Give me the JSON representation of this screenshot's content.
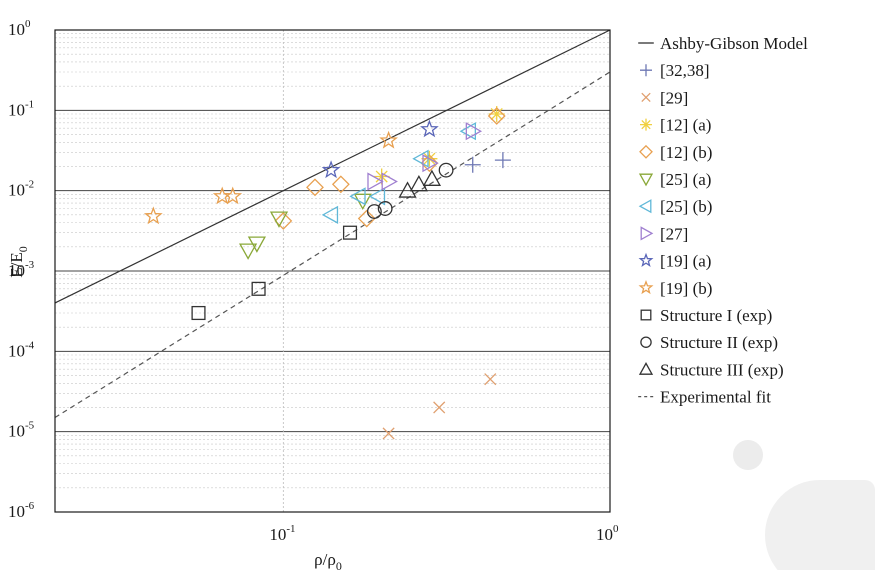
{
  "chart_data": {
    "type": "scatter",
    "xscale": "log",
    "yscale": "log",
    "xlim": [
      0.02,
      1
    ],
    "ylim": [
      1e-06,
      1
    ],
    "xlabel": "ρ/ρ0",
    "ylabel": "E/E0",
    "xticks": [
      {
        "value": 0.1,
        "base": "10",
        "exp": "-1"
      },
      {
        "value": 1,
        "base": "10",
        "exp": "0"
      }
    ],
    "yticks": [
      {
        "value": 1,
        "base": "10",
        "exp": "0"
      },
      {
        "value": 0.1,
        "base": "10",
        "exp": "-1"
      },
      {
        "value": 0.01,
        "base": "10",
        "exp": "-2"
      },
      {
        "value": 0.001,
        "base": "10",
        "exp": "-3"
      },
      {
        "value": 0.0001,
        "base": "10",
        "exp": "-4"
      },
      {
        "value": 1e-05,
        "base": "10",
        "exp": "-5"
      },
      {
        "value": 1e-06,
        "base": "10",
        "exp": "-6"
      }
    ],
    "grid": true,
    "legend_position": "right",
    "lines": [
      {
        "name": "Ashby-Gibson Model",
        "style": "solid",
        "color": "#333333",
        "points": [
          [
            0.02,
            0.0004
          ],
          [
            1,
            1
          ]
        ]
      },
      {
        "name": "Experimental fit",
        "style": "dashed",
        "color": "#555555",
        "points": [
          [
            0.02,
            1.5e-05
          ],
          [
            1,
            0.3
          ]
        ]
      }
    ],
    "series": [
      {
        "name": "[32,38]",
        "marker": "plus",
        "color": "#6e78b4",
        "points": [
          [
            0.38,
            0.021
          ],
          [
            0.47,
            0.024
          ]
        ]
      },
      {
        "name": "[29]",
        "marker": "x",
        "color": "#e0a070",
        "points": [
          [
            0.21,
            9.5e-06
          ],
          [
            0.3,
            2e-05
          ],
          [
            0.43,
            4.5e-05
          ]
        ]
      },
      {
        "name": "[12] (a)",
        "marker": "asterisk",
        "color": "#f0d040",
        "points": [
          [
            0.2,
            0.015
          ],
          [
            0.28,
            0.025
          ],
          [
            0.45,
            0.09
          ]
        ]
      },
      {
        "name": "[12] (b)",
        "marker": "diamond",
        "color": "#e8a050",
        "points": [
          [
            0.1,
            0.0042
          ],
          [
            0.125,
            0.011
          ],
          [
            0.15,
            0.012
          ],
          [
            0.18,
            0.0045
          ],
          [
            0.28,
            0.022
          ],
          [
            0.45,
            0.085
          ]
        ]
      },
      {
        "name": "[25] (a)",
        "marker": "triangle-down",
        "color": "#8aa838",
        "points": [
          [
            0.078,
            0.0018
          ],
          [
            0.083,
            0.0022
          ],
          [
            0.097,
            0.0045
          ],
          [
            0.175,
            0.0075
          ]
        ]
      },
      {
        "name": "[25] (b)",
        "marker": "triangle-left",
        "color": "#60b8d8",
        "points": [
          [
            0.14,
            0.005
          ],
          [
            0.17,
            0.0085
          ],
          [
            0.195,
            0.0085
          ],
          [
            0.265,
            0.025
          ],
          [
            0.37,
            0.055
          ]
        ]
      },
      {
        "name": "[27]",
        "marker": "triangle-right",
        "color": "#a080d0",
        "points": [
          [
            0.19,
            0.013
          ],
          [
            0.21,
            0.013
          ],
          [
            0.28,
            0.022
          ],
          [
            0.38,
            0.055
          ]
        ]
      },
      {
        "name": "[19] (a)",
        "marker": "star",
        "color": "#5a66b8",
        "points": [
          [
            0.14,
            0.018
          ],
          [
            0.28,
            0.058
          ]
        ]
      },
      {
        "name": "[19] (b)",
        "marker": "star",
        "color": "#e8a050",
        "points": [
          [
            0.04,
            0.0048
          ],
          [
            0.065,
            0.0085
          ],
          [
            0.07,
            0.0085
          ],
          [
            0.21,
            0.042
          ]
        ]
      },
      {
        "name": "Structure I (exp)",
        "marker": "square",
        "color": "#333333",
        "points": [
          [
            0.055,
            0.0003
          ],
          [
            0.084,
            0.0006
          ],
          [
            0.16,
            0.003
          ]
        ]
      },
      {
        "name": "Structure II (exp)",
        "marker": "circle",
        "color": "#333333",
        "points": [
          [
            0.19,
            0.0055
          ],
          [
            0.205,
            0.006
          ],
          [
            0.315,
            0.018
          ]
        ]
      },
      {
        "name": "Structure III (exp)",
        "marker": "triangle-up",
        "color": "#333333",
        "points": [
          [
            0.24,
            0.01
          ],
          [
            0.26,
            0.012
          ],
          [
            0.285,
            0.014
          ]
        ]
      }
    ],
    "legend": [
      {
        "label": "Ashby-Gibson Model",
        "marker": "line-solid",
        "color": "#333333"
      },
      {
        "label": "[32,38]",
        "marker": "plus",
        "color": "#6e78b4"
      },
      {
        "label": "[29]",
        "marker": "x",
        "color": "#e0a070"
      },
      {
        "label": "[12] (a)",
        "marker": "asterisk",
        "color": "#f0d040"
      },
      {
        "label": "[12] (b)",
        "marker": "diamond",
        "color": "#e8a050"
      },
      {
        "label": "[25] (a)",
        "marker": "triangle-down",
        "color": "#8aa838"
      },
      {
        "label": "[25] (b)",
        "marker": "triangle-left",
        "color": "#60b8d8"
      },
      {
        "label": "[27]",
        "marker": "triangle-right",
        "color": "#a080d0"
      },
      {
        "label": "[19] (a)",
        "marker": "star",
        "color": "#5a66b8"
      },
      {
        "label": "[19] (b)",
        "marker": "star",
        "color": "#e8a050"
      },
      {
        "label": "Structure I (exp)",
        "marker": "square",
        "color": "#333333"
      },
      {
        "label": "Structure II (exp)",
        "marker": "circle",
        "color": "#333333"
      },
      {
        "label": "Structure III (exp)",
        "marker": "triangle-up",
        "color": "#333333"
      },
      {
        "label": "Experimental fit",
        "marker": "line-dashed",
        "color": "#555555"
      }
    ]
  }
}
